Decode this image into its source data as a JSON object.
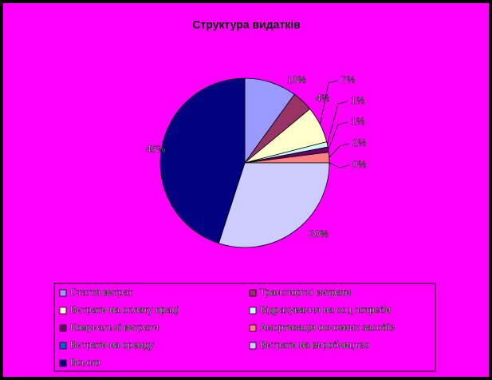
{
  "chart_data": {
    "type": "pie",
    "title": "Структура видатків",
    "categories": [
      "Стаття витрат",
      "Транспортні витрати",
      "Витрати на оплату праці",
      "Відрахування на соц потреби",
      "Комунальні витрати",
      "Амортизація основних засобів",
      "Витрати на оренду",
      "Витрати на виробництво",
      "Всього"
    ],
    "values": [
      10,
      4,
      7,
      1,
      1,
      2,
      0,
      30,
      45
    ],
    "value_labels": [
      "10%",
      "4%",
      "7%",
      "1%",
      "1%",
      "2%",
      "0%",
      "30%",
      "45%"
    ],
    "colors": [
      "#9999ff",
      "#993366",
      "#ffffcc",
      "#ccffff",
      "#660066",
      "#ff8080",
      "#0066cc",
      "#ccccff",
      "#000080"
    ]
  }
}
